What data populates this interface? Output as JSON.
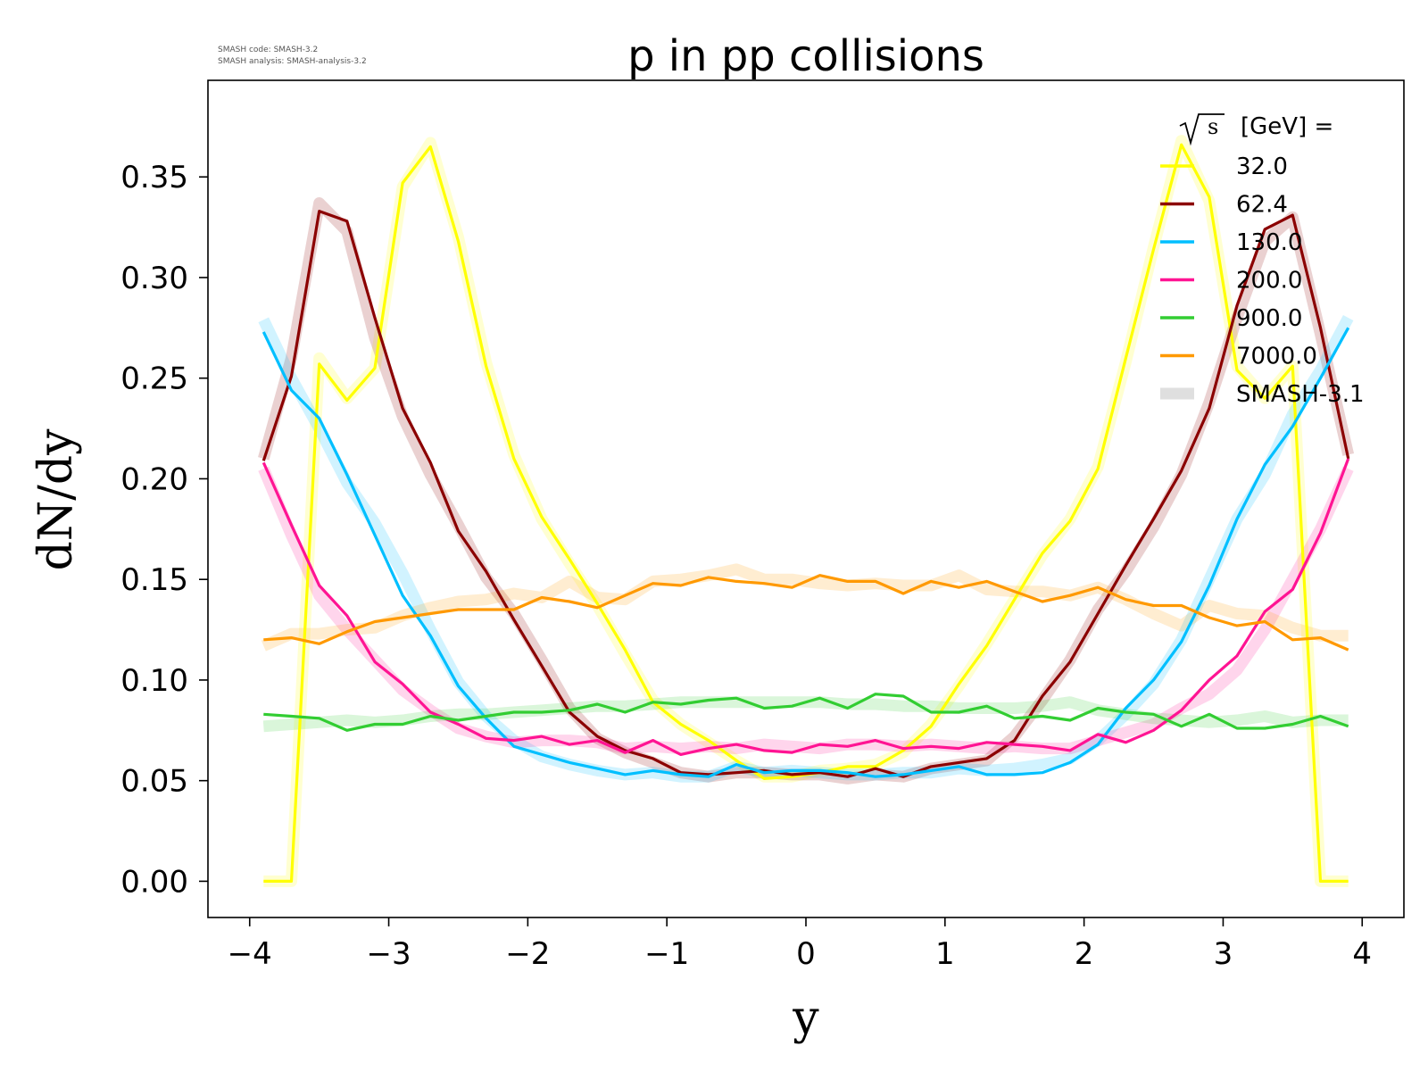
{
  "meta": {
    "line1": "SMASH code:      SMASH-3.2",
    "line2": "SMASH analysis: SMASH-analysis-3.2"
  },
  "chart_data": {
    "type": "line",
    "title": "p in pp collisions",
    "xlabel": "y",
    "ylabel": "dN/dy",
    "xlim": [
      -4.3,
      4.3
    ],
    "ylim": [
      -0.018,
      0.398
    ],
    "xticks": [
      -4,
      -3,
      -2,
      -1,
      0,
      1,
      2,
      3,
      4
    ],
    "xtick_labels": [
      "−4",
      "−3",
      "−2",
      "−1",
      "0",
      "1",
      "2",
      "3",
      "4"
    ],
    "yticks": [
      0.0,
      0.05,
      0.1,
      0.15,
      0.2,
      0.25,
      0.3,
      0.35
    ],
    "ytick_labels": [
      "0.00",
      "0.05",
      "0.10",
      "0.15",
      "0.20",
      "0.25",
      "0.30",
      "0.35"
    ],
    "grid": false,
    "legend": {
      "placement": "top-right",
      "title_symbol": "s",
      "title_text": "[GeV] =",
      "reference_label": "SMASH-3.1",
      "reference_color": "#d9d9d9"
    },
    "x": [
      -3.9,
      -3.7,
      -3.5,
      -3.3,
      -3.1,
      -2.9,
      -2.7,
      -2.5,
      -2.3,
      -2.1,
      -1.9,
      -1.7,
      -1.5,
      -1.3,
      -1.1,
      -0.9,
      -0.7,
      -0.5,
      -0.3,
      -0.1,
      0.1,
      0.3,
      0.5,
      0.7,
      0.9,
      1.1,
      1.3,
      1.5,
      1.7,
      1.9,
      2.1,
      2.3,
      2.5,
      2.7,
      2.9,
      3.1,
      3.3,
      3.5,
      3.7,
      3.9
    ],
    "series": [
      {
        "name": "32.0",
        "color": "#ffff00",
        "values": [
          0.0,
          0.0,
          0.257,
          0.239,
          0.255,
          0.347,
          0.365,
          0.318,
          0.256,
          0.21,
          0.181,
          0.16,
          0.138,
          0.115,
          0.089,
          0.078,
          0.07,
          0.06,
          0.051,
          0.052,
          0.054,
          0.057,
          0.057,
          0.065,
          0.077,
          0.098,
          0.117,
          0.14,
          0.163,
          0.179,
          0.205,
          0.26,
          0.314,
          0.366,
          0.34,
          0.254,
          0.24,
          0.256,
          0.0,
          0.0
        ],
        "ref_values": [
          0.0,
          0.0,
          0.26,
          0.24,
          0.255,
          0.345,
          0.367,
          0.32,
          0.258,
          0.212,
          0.18,
          0.158,
          0.137,
          0.113,
          0.09,
          0.078,
          0.069,
          0.06,
          0.052,
          0.052,
          0.055,
          0.056,
          0.058,
          0.064,
          0.078,
          0.097,
          0.118,
          0.14,
          0.162,
          0.18,
          0.206,
          0.258,
          0.315,
          0.368,
          0.338,
          0.256,
          0.24,
          0.256,
          0.0,
          0.0
        ]
      },
      {
        "name": "62.4",
        "color": "#8b0000",
        "values": [
          0.209,
          0.251,
          0.333,
          0.328,
          0.28,
          0.235,
          0.208,
          0.174,
          0.154,
          0.13,
          0.107,
          0.084,
          0.072,
          0.065,
          0.061,
          0.054,
          0.053,
          0.054,
          0.055,
          0.053,
          0.054,
          0.052,
          0.056,
          0.052,
          0.057,
          0.059,
          0.061,
          0.07,
          0.092,
          0.109,
          0.133,
          0.157,
          0.18,
          0.204,
          0.235,
          0.286,
          0.324,
          0.331,
          0.275,
          0.21
        ],
        "ref_values": [
          0.21,
          0.26,
          0.337,
          0.323,
          0.27,
          0.231,
          0.202,
          0.177,
          0.151,
          0.133,
          0.11,
          0.086,
          0.071,
          0.064,
          0.059,
          0.054,
          0.052,
          0.054,
          0.054,
          0.053,
          0.053,
          0.051,
          0.053,
          0.052,
          0.056,
          0.058,
          0.06,
          0.072,
          0.09,
          0.11,
          0.135,
          0.154,
          0.176,
          0.202,
          0.238,
          0.28,
          0.318,
          0.33,
          0.272,
          0.212
        ]
      },
      {
        "name": "130.0",
        "color": "#00bfff",
        "values": [
          0.273,
          0.244,
          0.23,
          0.202,
          0.172,
          0.142,
          0.122,
          0.097,
          0.081,
          0.067,
          0.063,
          0.059,
          0.056,
          0.053,
          0.055,
          0.053,
          0.052,
          0.058,
          0.054,
          0.055,
          0.055,
          0.054,
          0.052,
          0.053,
          0.055,
          0.057,
          0.053,
          0.053,
          0.054,
          0.059,
          0.068,
          0.086,
          0.1,
          0.119,
          0.147,
          0.18,
          0.207,
          0.226,
          0.25,
          0.275
        ],
        "ref_values": [
          0.279,
          0.25,
          0.225,
          0.198,
          0.178,
          0.153,
          0.125,
          0.099,
          0.082,
          0.07,
          0.062,
          0.058,
          0.055,
          0.053,
          0.054,
          0.052,
          0.052,
          0.057,
          0.054,
          0.055,
          0.054,
          0.053,
          0.053,
          0.054,
          0.054,
          0.056,
          0.055,
          0.056,
          0.058,
          0.061,
          0.07,
          0.083,
          0.098,
          0.12,
          0.15,
          0.18,
          0.202,
          0.232,
          0.254,
          0.28
        ]
      },
      {
        "name": "200.0",
        "color": "#ff1493",
        "values": [
          0.208,
          0.177,
          0.147,
          0.132,
          0.109,
          0.098,
          0.084,
          0.078,
          0.071,
          0.07,
          0.072,
          0.068,
          0.07,
          0.064,
          0.07,
          0.063,
          0.066,
          0.068,
          0.065,
          0.064,
          0.068,
          0.067,
          0.07,
          0.066,
          0.067,
          0.066,
          0.069,
          0.068,
          0.067,
          0.065,
          0.073,
          0.069,
          0.075,
          0.085,
          0.1,
          0.112,
          0.134,
          0.145,
          0.173,
          0.21
        ],
        "ref_values": [
          0.205,
          0.172,
          0.142,
          0.125,
          0.11,
          0.095,
          0.085,
          0.076,
          0.072,
          0.069,
          0.07,
          0.07,
          0.069,
          0.066,
          0.067,
          0.066,
          0.067,
          0.066,
          0.068,
          0.067,
          0.066,
          0.068,
          0.068,
          0.067,
          0.068,
          0.067,
          0.066,
          0.067,
          0.066,
          0.066,
          0.07,
          0.074,
          0.078,
          0.086,
          0.093,
          0.105,
          0.125,
          0.15,
          0.175,
          0.205
        ]
      },
      {
        "name": "900.0",
        "color": "#32cd32",
        "values": [
          0.083,
          0.082,
          0.081,
          0.075,
          0.078,
          0.078,
          0.082,
          0.08,
          0.082,
          0.084,
          0.084,
          0.085,
          0.088,
          0.084,
          0.089,
          0.088,
          0.09,
          0.091,
          0.086,
          0.087,
          0.091,
          0.086,
          0.093,
          0.092,
          0.084,
          0.084,
          0.087,
          0.081,
          0.082,
          0.08,
          0.086,
          0.084,
          0.083,
          0.077,
          0.083,
          0.076,
          0.076,
          0.078,
          0.082,
          0.077
        ],
        "ref_values": [
          0.077,
          0.078,
          0.079,
          0.08,
          0.079,
          0.08,
          0.082,
          0.083,
          0.083,
          0.084,
          0.085,
          0.086,
          0.087,
          0.087,
          0.088,
          0.089,
          0.089,
          0.089,
          0.089,
          0.089,
          0.089,
          0.088,
          0.088,
          0.087,
          0.087,
          0.086,
          0.086,
          0.086,
          0.087,
          0.089,
          0.085,
          0.083,
          0.081,
          0.08,
          0.079,
          0.08,
          0.082,
          0.079,
          0.08,
          0.08
        ]
      },
      {
        "name": "7000.0",
        "color": "#ff9900",
        "values": [
          0.12,
          0.121,
          0.118,
          0.124,
          0.129,
          0.131,
          0.133,
          0.135,
          0.135,
          0.135,
          0.141,
          0.139,
          0.136,
          0.142,
          0.148,
          0.147,
          0.151,
          0.149,
          0.148,
          0.146,
          0.152,
          0.149,
          0.149,
          0.143,
          0.149,
          0.146,
          0.149,
          0.144,
          0.139,
          0.142,
          0.146,
          0.14,
          0.137,
          0.137,
          0.131,
          0.127,
          0.129,
          0.12,
          0.121,
          0.115
        ],
        "ref_values": [
          0.117,
          0.123,
          0.123,
          0.125,
          0.126,
          0.132,
          0.136,
          0.139,
          0.14,
          0.143,
          0.141,
          0.149,
          0.141,
          0.14,
          0.149,
          0.15,
          0.152,
          0.155,
          0.15,
          0.15,
          0.148,
          0.147,
          0.148,
          0.147,
          0.147,
          0.152,
          0.145,
          0.144,
          0.144,
          0.142,
          0.146,
          0.14,
          0.133,
          0.127,
          0.137,
          0.133,
          0.132,
          0.126,
          0.122,
          0.122
        ]
      }
    ]
  }
}
